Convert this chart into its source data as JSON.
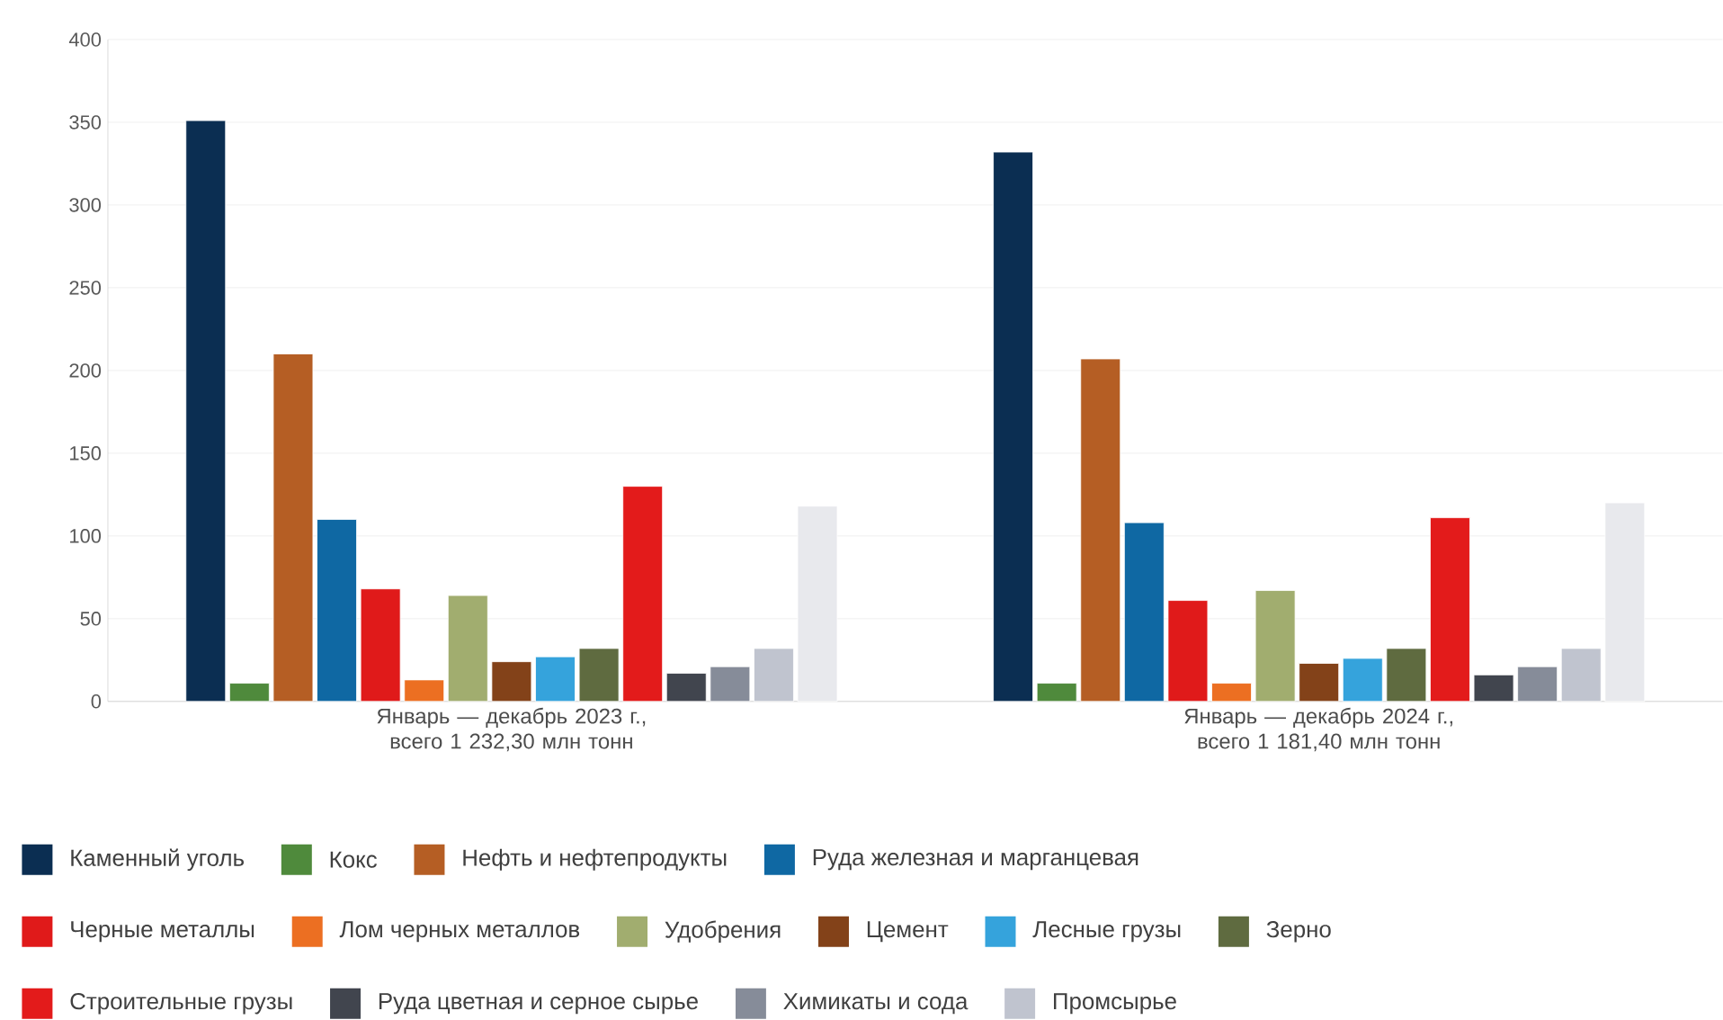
{
  "chart_data": {
    "type": "bar",
    "categories": [
      "Январь — декабрь 2023 г., всего 1 232,30 млн тонн",
      "Январь — декабрь 2024 г., всего 1 181,40 млн тонн"
    ],
    "series": [
      {
        "name": "Каменный уголь",
        "color": "#0b2e52",
        "values": [
          351,
          332
        ]
      },
      {
        "name": "Кокс",
        "color": "#4f8a3c",
        "values": [
          11,
          11
        ]
      },
      {
        "name": "Нефть и нефтепродукты",
        "color": "#b55e24",
        "values": [
          210,
          207
        ]
      },
      {
        "name": "Руда железная и марганцевая",
        "color": "#0f68a3",
        "values": [
          110,
          108
        ]
      },
      {
        "name": "Черные металлы",
        "color": "#e01a1a",
        "values": [
          68,
          61
        ]
      },
      {
        "name": "Лом черных металлов",
        "color": "#ec6f22",
        "values": [
          13,
          11
        ]
      },
      {
        "name": "Удобрения",
        "color": "#a1ad6f",
        "values": [
          64,
          67
        ]
      },
      {
        "name": "Цемент",
        "color": "#834219",
        "values": [
          24,
          23
        ]
      },
      {
        "name": "Лесные грузы",
        "color": "#35a3dc",
        "values": [
          27,
          26
        ]
      },
      {
        "name": "Зерно",
        "color": "#5f6b40",
        "values": [
          32,
          32
        ]
      },
      {
        "name": "Строительные грузы",
        "color": "#e31b1b",
        "values": [
          130,
          111
        ]
      },
      {
        "name": "Руда цветная и серное сырье",
        "color": "#41454e",
        "values": [
          17,
          16
        ]
      },
      {
        "name": "Химикаты и сода",
        "color": "#868c99",
        "values": [
          21,
          21
        ]
      },
      {
        "name": "Промсырье",
        "color": "#c0c4cf",
        "values": [
          32,
          32
        ]
      },
      {
        "color": "#e8e9ed",
        "values": [
          118,
          120
        ]
      }
    ],
    "ylim": [
      0,
      400
    ],
    "yticks": [
      0,
      50,
      100,
      150,
      200,
      250,
      300,
      350,
      400
    ],
    "grid": "y",
    "legend": "bottom"
  }
}
